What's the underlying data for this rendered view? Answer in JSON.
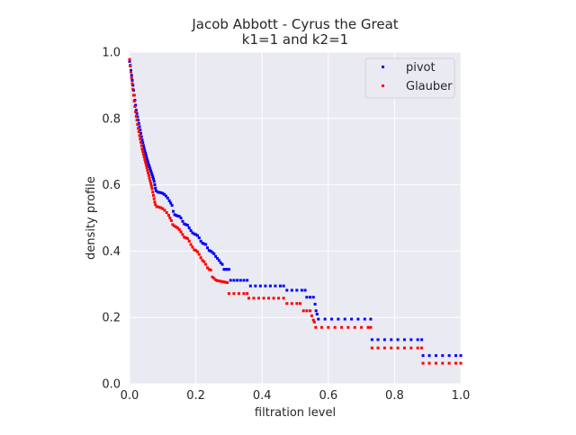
{
  "chart_data": {
    "type": "scatter",
    "title": "Jacob Abbott - Cyrus the Great",
    "subtitle": "k1=1 and k2=1",
    "xlabel": "filtration level",
    "ylabel": "density profile",
    "xlim": [
      0.0,
      1.0
    ],
    "ylim": [
      0.0,
      1.0
    ],
    "xticks": [
      "0.0",
      "0.2",
      "0.4",
      "0.6",
      "0.8",
      "1.0"
    ],
    "yticks": [
      "0.0",
      "0.2",
      "0.4",
      "0.6",
      "0.8",
      "1.0"
    ],
    "grid": true,
    "legend_position": "top-right",
    "series": [
      {
        "name": "pivot",
        "color": "#0000ff",
        "points": [
          [
            0.0,
            0.972
          ],
          [
            0.002,
            0.96
          ],
          [
            0.004,
            0.945
          ],
          [
            0.006,
            0.93
          ],
          [
            0.008,
            0.915
          ],
          [
            0.01,
            0.9
          ],
          [
            0.012,
            0.885
          ],
          [
            0.014,
            0.87
          ],
          [
            0.016,
            0.855
          ],
          [
            0.018,
            0.84
          ],
          [
            0.02,
            0.825
          ],
          [
            0.022,
            0.815
          ],
          [
            0.024,
            0.805
          ],
          [
            0.026,
            0.795
          ],
          [
            0.028,
            0.785
          ],
          [
            0.03,
            0.775
          ],
          [
            0.032,
            0.765
          ],
          [
            0.034,
            0.755
          ],
          [
            0.036,
            0.745
          ],
          [
            0.038,
            0.735
          ],
          [
            0.04,
            0.727
          ],
          [
            0.042,
            0.718
          ],
          [
            0.044,
            0.71
          ],
          [
            0.046,
            0.702
          ],
          [
            0.048,
            0.695
          ],
          [
            0.05,
            0.688
          ],
          [
            0.052,
            0.68
          ],
          [
            0.054,
            0.673
          ],
          [
            0.056,
            0.667
          ],
          [
            0.058,
            0.66
          ],
          [
            0.06,
            0.654
          ],
          [
            0.062,
            0.648
          ],
          [
            0.064,
            0.642
          ],
          [
            0.066,
            0.636
          ],
          [
            0.068,
            0.63
          ],
          [
            0.07,
            0.624
          ],
          [
            0.072,
            0.618
          ],
          [
            0.074,
            0.61
          ],
          [
            0.076,
            0.6
          ],
          [
            0.078,
            0.59
          ],
          [
            0.08,
            0.582
          ],
          [
            0.085,
            0.578
          ],
          [
            0.09,
            0.577
          ],
          [
            0.095,
            0.576
          ],
          [
            0.1,
            0.574
          ],
          [
            0.105,
            0.571
          ],
          [
            0.11,
            0.566
          ],
          [
            0.115,
            0.56
          ],
          [
            0.12,
            0.552
          ],
          [
            0.124,
            0.545
          ],
          [
            0.128,
            0.538
          ],
          [
            0.132,
            0.52
          ],
          [
            0.136,
            0.51
          ],
          [
            0.14,
            0.508
          ],
          [
            0.145,
            0.506
          ],
          [
            0.15,
            0.505
          ],
          [
            0.155,
            0.5
          ],
          [
            0.16,
            0.49
          ],
          [
            0.165,
            0.482
          ],
          [
            0.17,
            0.48
          ],
          [
            0.175,
            0.478
          ],
          [
            0.18,
            0.47
          ],
          [
            0.185,
            0.462
          ],
          [
            0.19,
            0.455
          ],
          [
            0.195,
            0.452
          ],
          [
            0.2,
            0.45
          ],
          [
            0.205,
            0.447
          ],
          [
            0.21,
            0.44
          ],
          [
            0.215,
            0.43
          ],
          [
            0.22,
            0.424
          ],
          [
            0.225,
            0.422
          ],
          [
            0.23,
            0.42
          ],
          [
            0.235,
            0.41
          ],
          [
            0.24,
            0.402
          ],
          [
            0.245,
            0.4
          ],
          [
            0.25,
            0.396
          ],
          [
            0.255,
            0.392
          ],
          [
            0.26,
            0.384
          ],
          [
            0.265,
            0.378
          ],
          [
            0.27,
            0.372
          ],
          [
            0.275,
            0.365
          ],
          [
            0.28,
            0.36
          ],
          [
            0.285,
            0.345
          ],
          [
            0.29,
            0.345
          ],
          [
            0.295,
            0.345
          ],
          [
            0.3,
            0.345
          ],
          [
            0.305,
            0.312
          ],
          [
            0.315,
            0.312
          ],
          [
            0.325,
            0.312
          ],
          [
            0.335,
            0.312
          ],
          [
            0.345,
            0.312
          ],
          [
            0.355,
            0.312
          ],
          [
            0.365,
            0.295
          ],
          [
            0.38,
            0.295
          ],
          [
            0.395,
            0.295
          ],
          [
            0.41,
            0.295
          ],
          [
            0.425,
            0.295
          ],
          [
            0.44,
            0.295
          ],
          [
            0.455,
            0.295
          ],
          [
            0.465,
            0.295
          ],
          [
            0.475,
            0.282
          ],
          [
            0.49,
            0.282
          ],
          [
            0.505,
            0.282
          ],
          [
            0.52,
            0.282
          ],
          [
            0.53,
            0.282
          ],
          [
            0.535,
            0.261
          ],
          [
            0.545,
            0.261
          ],
          [
            0.555,
            0.261
          ],
          [
            0.56,
            0.24
          ],
          [
            0.563,
            0.22
          ],
          [
            0.566,
            0.21
          ],
          [
            0.57,
            0.195
          ],
          [
            0.59,
            0.195
          ],
          [
            0.61,
            0.195
          ],
          [
            0.63,
            0.195
          ],
          [
            0.65,
            0.195
          ],
          [
            0.67,
            0.195
          ],
          [
            0.69,
            0.195
          ],
          [
            0.71,
            0.195
          ],
          [
            0.728,
            0.195
          ],
          [
            0.732,
            0.133
          ],
          [
            0.75,
            0.133
          ],
          [
            0.77,
            0.133
          ],
          [
            0.79,
            0.133
          ],
          [
            0.81,
            0.133
          ],
          [
            0.83,
            0.133
          ],
          [
            0.85,
            0.133
          ],
          [
            0.87,
            0.133
          ],
          [
            0.882,
            0.133
          ],
          [
            0.886,
            0.085
          ],
          [
            0.905,
            0.085
          ],
          [
            0.925,
            0.085
          ],
          [
            0.945,
            0.085
          ],
          [
            0.965,
            0.085
          ],
          [
            0.985,
            0.085
          ],
          [
            1.0,
            0.085
          ]
        ]
      },
      {
        "name": "Glauber",
        "color": "#ff0000",
        "points": [
          [
            0.0,
            0.978
          ],
          [
            0.002,
            0.958
          ],
          [
            0.004,
            0.94
          ],
          [
            0.006,
            0.922
          ],
          [
            0.008,
            0.905
          ],
          [
            0.01,
            0.888
          ],
          [
            0.012,
            0.87
          ],
          [
            0.014,
            0.852
          ],
          [
            0.016,
            0.836
          ],
          [
            0.018,
            0.82
          ],
          [
            0.02,
            0.806
          ],
          [
            0.022,
            0.795
          ],
          [
            0.024,
            0.782
          ],
          [
            0.026,
            0.77
          ],
          [
            0.028,
            0.76
          ],
          [
            0.03,
            0.748
          ],
          [
            0.032,
            0.738
          ],
          [
            0.034,
            0.728
          ],
          [
            0.036,
            0.718
          ],
          [
            0.038,
            0.708
          ],
          [
            0.04,
            0.7
          ],
          [
            0.042,
            0.692
          ],
          [
            0.044,
            0.684
          ],
          [
            0.046,
            0.676
          ],
          [
            0.048,
            0.668
          ],
          [
            0.05,
            0.66
          ],
          [
            0.052,
            0.652
          ],
          [
            0.054,
            0.644
          ],
          [
            0.056,
            0.636
          ],
          [
            0.058,
            0.628
          ],
          [
            0.06,
            0.62
          ],
          [
            0.062,
            0.612
          ],
          [
            0.064,
            0.604
          ],
          [
            0.066,
            0.596
          ],
          [
            0.068,
            0.588
          ],
          [
            0.07,
            0.578
          ],
          [
            0.072,
            0.568
          ],
          [
            0.074,
            0.558
          ],
          [
            0.076,
            0.548
          ],
          [
            0.078,
            0.54
          ],
          [
            0.082,
            0.534
          ],
          [
            0.088,
            0.533
          ],
          [
            0.094,
            0.531
          ],
          [
            0.1,
            0.528
          ],
          [
            0.106,
            0.523
          ],
          [
            0.112,
            0.516
          ],
          [
            0.118,
            0.508
          ],
          [
            0.122,
            0.5
          ],
          [
            0.126,
            0.492
          ],
          [
            0.13,
            0.48
          ],
          [
            0.135,
            0.476
          ],
          [
            0.14,
            0.473
          ],
          [
            0.145,
            0.47
          ],
          [
            0.15,
            0.465
          ],
          [
            0.155,
            0.458
          ],
          [
            0.16,
            0.45
          ],
          [
            0.165,
            0.442
          ],
          [
            0.17,
            0.44
          ],
          [
            0.175,
            0.438
          ],
          [
            0.18,
            0.43
          ],
          [
            0.185,
            0.42
          ],
          [
            0.19,
            0.412
          ],
          [
            0.195,
            0.404
          ],
          [
            0.2,
            0.402
          ],
          [
            0.205,
            0.398
          ],
          [
            0.21,
            0.39
          ],
          [
            0.215,
            0.38
          ],
          [
            0.22,
            0.372
          ],
          [
            0.225,
            0.368
          ],
          [
            0.23,
            0.36
          ],
          [
            0.235,
            0.35
          ],
          [
            0.24,
            0.345
          ],
          [
            0.245,
            0.343
          ],
          [
            0.25,
            0.322
          ],
          [
            0.255,
            0.318
          ],
          [
            0.26,
            0.313
          ],
          [
            0.265,
            0.311
          ],
          [
            0.27,
            0.31
          ],
          [
            0.275,
            0.309
          ],
          [
            0.28,
            0.308
          ],
          [
            0.285,
            0.307
          ],
          [
            0.29,
            0.306
          ],
          [
            0.295,
            0.305
          ],
          [
            0.3,
            0.272
          ],
          [
            0.315,
            0.272
          ],
          [
            0.33,
            0.272
          ],
          [
            0.345,
            0.272
          ],
          [
            0.355,
            0.272
          ],
          [
            0.36,
            0.258
          ],
          [
            0.375,
            0.258
          ],
          [
            0.39,
            0.258
          ],
          [
            0.405,
            0.258
          ],
          [
            0.42,
            0.258
          ],
          [
            0.435,
            0.258
          ],
          [
            0.45,
            0.258
          ],
          [
            0.465,
            0.258
          ],
          [
            0.475,
            0.242
          ],
          [
            0.49,
            0.242
          ],
          [
            0.505,
            0.242
          ],
          [
            0.515,
            0.242
          ],
          [
            0.525,
            0.22
          ],
          [
            0.535,
            0.22
          ],
          [
            0.545,
            0.22
          ],
          [
            0.55,
            0.205
          ],
          [
            0.555,
            0.192
          ],
          [
            0.558,
            0.186
          ],
          [
            0.562,
            0.17
          ],
          [
            0.58,
            0.17
          ],
          [
            0.6,
            0.17
          ],
          [
            0.62,
            0.17
          ],
          [
            0.64,
            0.17
          ],
          [
            0.66,
            0.17
          ],
          [
            0.68,
            0.17
          ],
          [
            0.7,
            0.17
          ],
          [
            0.72,
            0.17
          ],
          [
            0.728,
            0.17
          ],
          [
            0.732,
            0.108
          ],
          [
            0.75,
            0.108
          ],
          [
            0.77,
            0.108
          ],
          [
            0.79,
            0.108
          ],
          [
            0.81,
            0.108
          ],
          [
            0.83,
            0.108
          ],
          [
            0.85,
            0.108
          ],
          [
            0.87,
            0.108
          ],
          [
            0.882,
            0.108
          ],
          [
            0.886,
            0.062
          ],
          [
            0.905,
            0.062
          ],
          [
            0.925,
            0.062
          ],
          [
            0.945,
            0.062
          ],
          [
            0.965,
            0.062
          ],
          [
            0.985,
            0.062
          ],
          [
            1.0,
            0.062
          ]
        ]
      }
    ]
  }
}
